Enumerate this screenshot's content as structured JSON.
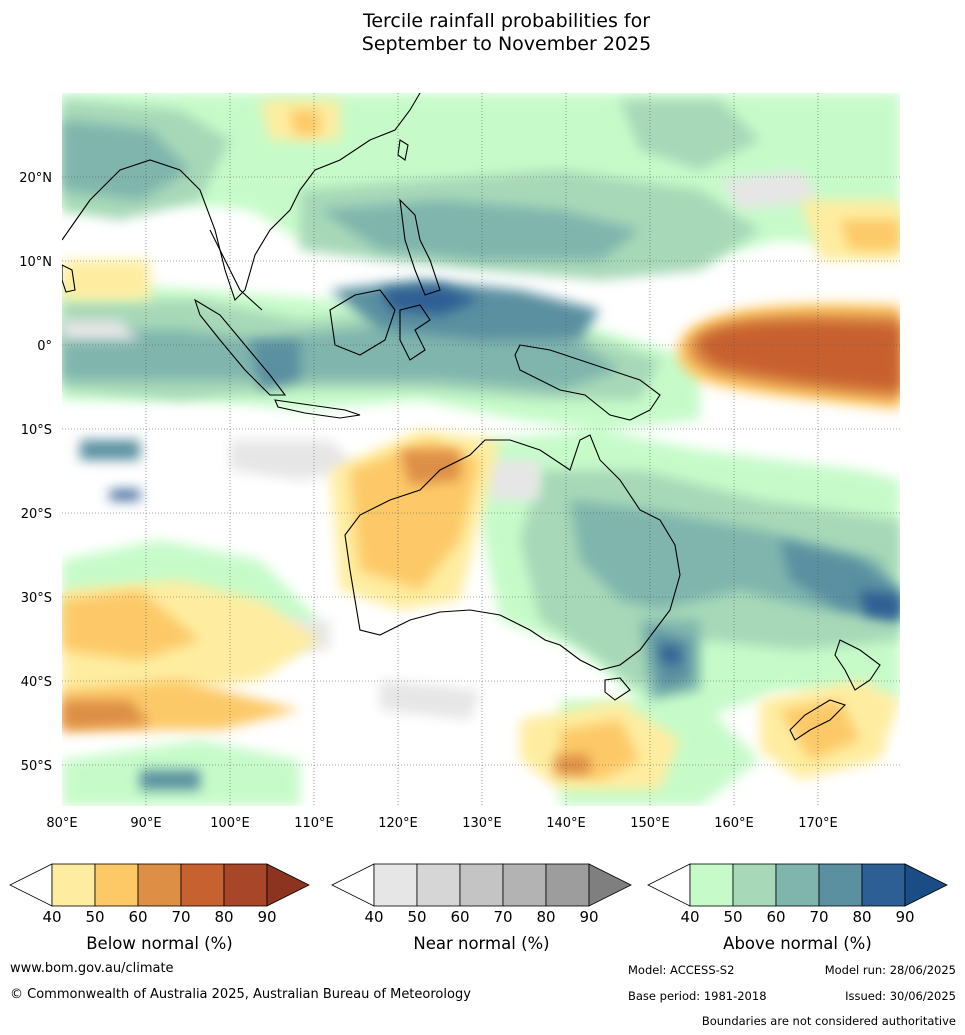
{
  "title": {
    "line1": "Tercile rainfall probabilities for",
    "line2": "September to November 2025"
  },
  "map": {
    "lat_labels": [
      "20°N",
      "10°N",
      "0°",
      "10°S",
      "20°S",
      "30°S",
      "40°S",
      "50°S"
    ],
    "lon_labels": [
      "80°E",
      "90°E",
      "100°E",
      "110°E",
      "120°E",
      "130°E",
      "140°E",
      "150°E",
      "160°E",
      "170°E"
    ]
  },
  "legends": [
    {
      "label": "Below normal (%)",
      "ticks": [
        "40",
        "50",
        "60",
        "70",
        "80",
        "90"
      ],
      "colors": [
        "#ffffff",
        "#feeda0",
        "#fdc967",
        "#dd8f46",
        "#c7612f",
        "#a84727",
        "#8c3420"
      ]
    },
    {
      "label": "Near normal (%)",
      "ticks": [
        "40",
        "50",
        "60",
        "70",
        "80",
        "90"
      ],
      "colors": [
        "#ffffff",
        "#e6e6e6",
        "#d6d6d6",
        "#c4c4c4",
        "#b3b3b3",
        "#9d9d9d",
        "#7f7f7f"
      ]
    },
    {
      "label": "Above normal (%)",
      "ticks": [
        "40",
        "50",
        "60",
        "70",
        "80",
        "90"
      ],
      "colors": [
        "#ffffff",
        "#c6fbc9",
        "#a7d8b8",
        "#7fb5ad",
        "#5a90a0",
        "#2d5f94",
        "#1a4c86"
      ]
    }
  ],
  "footer": {
    "website": "www.bom.gov.au/climate",
    "copyright": "© Commonwealth of Australia 2025, Australian Bureau of Meteorology",
    "model": "Model: ACCESS-S2",
    "model_run": "Model run: 28/06/2025",
    "base_period": "Base period: 1981-2018",
    "issued": "Issued: 30/06/2025",
    "disclaimer": "Boundaries are not considered authoritative"
  }
}
